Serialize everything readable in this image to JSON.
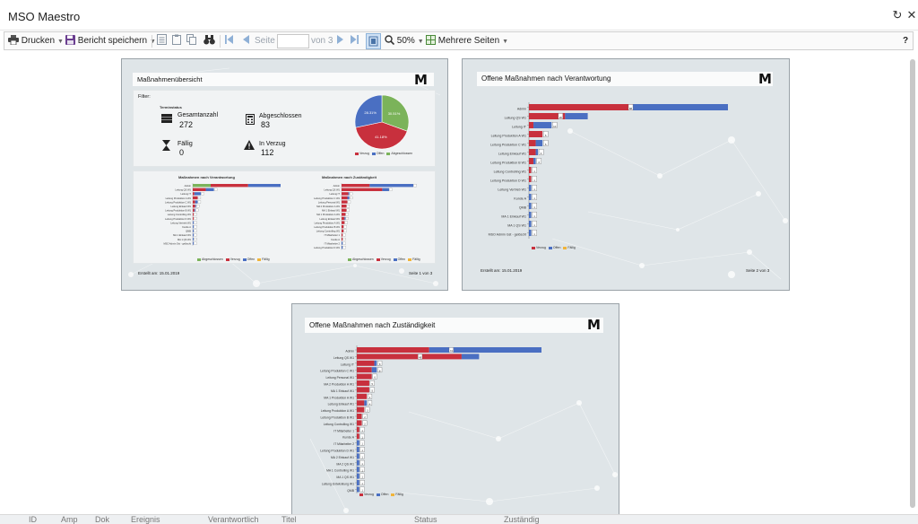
{
  "window": {
    "title": "MSO Maestro"
  },
  "toolbar": {
    "print_label": "Drucken",
    "save_label": "Bericht speichern",
    "page_label": "Seite",
    "page_value": "",
    "page_of": "von 3",
    "zoom": "50%",
    "multipage_label": "Mehrere Seiten",
    "help": "?"
  },
  "colors": {
    "red": "#c8303d",
    "blue": "#4a6fc2",
    "green": "#7bb35a",
    "orange": "#f0b43a"
  },
  "legend": {
    "abgeschlossen": "Abgeschlossen",
    "verzug": "Verzug",
    "offen": "Offen",
    "faellig": "Fällig"
  },
  "page1": {
    "header": "Maßnahmenübersicht",
    "filter": "Filter:",
    "terminstatus": "Terminstatus",
    "gesamtanzahl_label": "Gesamtanzahl",
    "gesamtanzahl": "272",
    "abgeschlossen_label": "Abgeschlossen",
    "abgeschlossen": "83",
    "faellig_label": "Fällig",
    "faellig": "0",
    "verzug_label": "In Verzug",
    "verzug": "112",
    "chart_left_title": "Maßnahmen nach Verantwortung",
    "chart_right_title": "Maßnahmen nach Zuständigkeit",
    "created": "Erstellt am: 15.01.2019",
    "page_no": "Seite 1 von 3"
  },
  "page2": {
    "header": "Offene Maßnahmen nach Verantwortung",
    "created": "Erstellt am: 15.01.2019",
    "page_no": "Seite 2 von 3"
  },
  "page3": {
    "header": "Offene Maßnahmen nach Zuständigkeit"
  },
  "statusbar": {
    "col1": "ID",
    "col2": "Amp",
    "col3": "Dok",
    "col4": "Ereignis",
    "col5": "Verantwortlich",
    "col6": "Titel",
    "col7": "Status",
    "col8": "Zuständig"
  },
  "chart_data": [
    {
      "type": "pie",
      "labels": [
        "Verzug",
        "Offen",
        "Abgeschlossen"
      ],
      "values": [
        41.18,
        28.31,
        30.51
      ],
      "value_labels": [
        "41.18%",
        "28.31%",
        "30.51%"
      ],
      "legend": "bottom"
    },
    {
      "type": "bar",
      "orientation": "horizontal",
      "title": "Offene Maßnahmen nach Verantwortung",
      "categories": [
        "Admin",
        "Leitung QS W1",
        "Leitung IT",
        "Leitung Produktion A W1",
        "Leitung Produktion C W1",
        "Leitung Einkauf W1",
        "Leitung Produktion B W1",
        "Leitung Controlling W1",
        "Leitung Produktion D W1",
        "Leitung Vertrieb W1",
        "Kunde A",
        "QMB",
        "MA 1 Einkauf W1",
        "MA 1 QS W1",
        "MSO Admin Gst - gelöscht"
      ],
      "series": [
        {
          "name": "Verzug",
          "values": [
            46,
            16,
            2,
            6,
            3,
            3,
            2,
            1,
            1,
            0,
            0,
            0,
            0,
            0,
            0
          ]
        },
        {
          "name": "Offen",
          "values": [
            42,
            10,
            8,
            0,
            3,
            1,
            1,
            0,
            0,
            1,
            1,
            1,
            1,
            1,
            1
          ]
        },
        {
          "name": "Fällig",
          "values": [
            0,
            0,
            0,
            0,
            0,
            0,
            0,
            0,
            0,
            0,
            0,
            0,
            0,
            0,
            0
          ]
        }
      ],
      "value_labels": [
        "88",
        "26",
        "10",
        "6",
        "6",
        "4",
        "3",
        "1",
        "1",
        "1",
        "1",
        "1",
        "1",
        "1",
        "1"
      ],
      "legend": "bottom-left"
    },
    {
      "type": "bar",
      "orientation": "horizontal",
      "title": "Offene Maßnahmen nach Zuständigkeit",
      "categories": [
        "Admin",
        "Leitung QS W1",
        "Leitung IT",
        "Leitung Produktion C W1",
        "Leitung Personal W1",
        "MA 2 Produktion A W1",
        "MA 1 Einkauf W1",
        "MA 1 Produktion A W1",
        "Leitung Einkauf W1",
        "Leitung Produktion A W1",
        "Leitung Produktion B W1",
        "Leitung Controlling W1",
        "IT Mitarbeiter 1",
        "Kunde A",
        "IT Mitarbeiter 2",
        "Leitung Produktion D W1",
        "MA 2 Einkauf W1",
        "MA 2 QS W1",
        "MA 1 Controlling W1",
        "MA 1 QS W1",
        "Leitung Entwicklung W1",
        "QMB"
      ],
      "series": [
        {
          "name": "Verzug",
          "values": [
            29,
            42,
            7,
            6,
            6,
            5,
            5,
            4,
            3,
            3,
            2,
            2,
            1,
            1,
            0,
            0,
            0,
            0,
            0,
            0,
            0,
            0
          ]
        },
        {
          "name": "Offen",
          "values": [
            45,
            7,
            1,
            2,
            0,
            0,
            0,
            0,
            1,
            0,
            0,
            0,
            0,
            0,
            1,
            1,
            1,
            1,
            1,
            1,
            1,
            1
          ]
        },
        {
          "name": "Fällig",
          "values": [
            0,
            0,
            0,
            0,
            0,
            0,
            0,
            0,
            0,
            0,
            0,
            0,
            0,
            0,
            0,
            0,
            0,
            0,
            0,
            0,
            0,
            0
          ]
        }
      ],
      "value_labels": [
        "74",
        "49",
        "8",
        "8",
        "6",
        "5",
        "5",
        "4",
        "4",
        "3",
        "2",
        "2",
        "1",
        "1",
        "1",
        "1",
        "1",
        "1",
        "1",
        "1",
        "1",
        "1"
      ],
      "legend": "bottom-left"
    }
  ]
}
